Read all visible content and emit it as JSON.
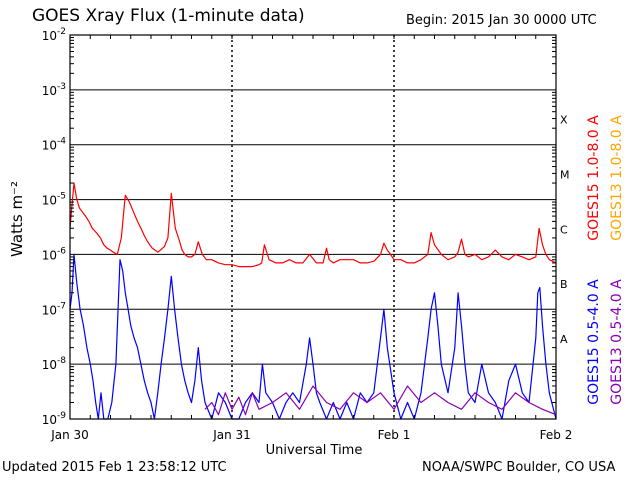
{
  "header": {
    "title": "GOES Xray Flux (1-minute data)",
    "begin": "Begin:  2015 Jan 30 0000 UTC"
  },
  "footer": {
    "updated": "Updated 2015 Feb  1 23:58:12 UTC",
    "credit": "NOAA/SWPC Boulder, CO USA"
  },
  "colors": {
    "goes15_long": "#ff0000",
    "goes13_long": "#ffa500",
    "goes15_short": "#0000ff",
    "goes13_short": "#8b00b0",
    "grid": "#000000"
  },
  "chart_data": {
    "type": "line",
    "xlabel": "Universal Time",
    "ylabel": "Watts m⁻²",
    "yscale": "log",
    "ylim": [
      1e-09,
      0.01
    ],
    "xlim": [
      0,
      72
    ],
    "x_unit": "hours since 2015 Jan 30 0000 UTC",
    "x_tick_labels": [
      {
        "x": 0,
        "label": "Jan 30"
      },
      {
        "x": 24,
        "label": "Jan 31"
      },
      {
        "x": 48,
        "label": "Feb 1"
      },
      {
        "x": 72,
        "label": "Feb 2"
      }
    ],
    "y_tick_labels": [
      {
        "value": 1e-09,
        "mant": "10",
        "exp": "-9"
      },
      {
        "value": 1e-08,
        "mant": "10",
        "exp": "-8"
      },
      {
        "value": 1e-07,
        "mant": "10",
        "exp": "-7"
      },
      {
        "value": 1e-06,
        "mant": "10",
        "exp": "-6"
      },
      {
        "value": 1e-05,
        "mant": "10",
        "exp": "-5"
      },
      {
        "value": 0.0001,
        "mant": "10",
        "exp": "-4"
      },
      {
        "value": 0.001,
        "mant": "10",
        "exp": "-3"
      },
      {
        "value": 0.01,
        "mant": "10",
        "exp": "-2"
      }
    ],
    "flare_classes": [
      {
        "label": "A",
        "value": 3e-08
      },
      {
        "label": "B",
        "value": 3e-07
      },
      {
        "label": "C",
        "value": 3e-06
      },
      {
        "label": "M",
        "value": 3e-05
      },
      {
        "label": "X",
        "value": 0.0003
      }
    ],
    "grid": true,
    "legend_position": "right",
    "series": [
      {
        "name": "GOES15 1.0-8.0 A",
        "color_key": "goes15_long",
        "x": [
          0,
          0.3,
          0.6,
          1.0,
          1.4,
          1.8,
          2.3,
          2.8,
          3.3,
          3.9,
          4.5,
          5.0,
          5.5,
          6.0,
          6.4,
          7.0,
          7.6,
          8.2,
          8.8,
          9.4,
          10.0,
          10.5,
          11.0,
          11.4,
          11.8,
          12.2,
          12.6,
          13.0,
          13.4,
          14.0,
          14.5,
          15.0,
          15.6,
          16.2,
          16.6,
          17.0,
          17.5,
          18.0,
          18.5,
          19.0,
          19.6,
          20.2,
          21.0,
          22.0,
          23.0,
          24.0,
          25.0,
          26.0,
          27.0,
          28.0,
          28.4,
          28.8,
          29.5,
          30.5,
          31.5,
          32.5,
          33.5,
          34.5,
          35.5,
          36.5,
          37.5,
          38.0,
          38.4,
          39.0,
          40.0,
          41.0,
          42.0,
          43.0,
          44.0,
          45.0,
          46.0,
          46.5,
          47.0,
          47.5,
          48.0,
          49.0,
          50.0,
          51.0,
          52.0,
          53.0,
          53.5,
          54.0,
          55.0,
          56.0,
          57.0,
          57.5,
          58.0,
          58.5,
          59.0,
          60.0,
          61.0,
          62.0,
          63.0,
          64.0,
          65.0,
          66.0,
          67.0,
          68.0,
          69.0,
          69.5,
          70.0,
          70.5,
          71.0,
          72.0
        ],
        "y": [
          3e-06,
          8e-06,
          2e-05,
          1e-05,
          7e-06,
          6e-06,
          5e-06,
          4e-06,
          3e-06,
          2.5e-06,
          2e-06,
          1.5e-06,
          1.3e-06,
          1.2e-06,
          1.1e-06,
          1e-06,
          2e-06,
          1.2e-05,
          9e-06,
          6e-06,
          4e-06,
          3e-06,
          2.2e-06,
          1.8e-06,
          1.5e-06,
          1.3e-06,
          1.2e-06,
          1.1e-06,
          1.2e-06,
          1.4e-06,
          2e-06,
          1.3e-05,
          3e-06,
          1.8e-06,
          1.2e-06,
          1e-06,
          9e-07,
          9e-07,
          1e-06,
          1.7e-06,
          1e-06,
          8e-07,
          8e-07,
          7e-07,
          6.5e-07,
          6.5e-07,
          6e-07,
          6e-07,
          6e-07,
          6.5e-07,
          7e-07,
          1.5e-06,
          8e-07,
          7e-07,
          7e-07,
          8e-07,
          7e-07,
          7e-07,
          1e-06,
          7e-07,
          7e-07,
          1.3e-06,
          8e-07,
          7e-07,
          8e-07,
          8e-07,
          8e-07,
          7e-07,
          7e-07,
          7.5e-07,
          1e-06,
          1.6e-06,
          1.2e-06,
          1e-06,
          8e-07,
          8e-07,
          7e-07,
          7e-07,
          8e-07,
          1e-06,
          2.5e-06,
          1.5e-06,
          1e-06,
          8e-07,
          9e-07,
          1.1e-06,
          1.9e-06,
          1e-06,
          9e-07,
          1e-06,
          8e-07,
          9e-07,
          1.2e-06,
          9e-07,
          8e-07,
          1e-06,
          9e-07,
          8e-07,
          9e-07,
          3e-06,
          1.5e-06,
          1e-06,
          8e-07,
          7e-07
        ]
      },
      {
        "name": "GOES13 1.0-8.0 A",
        "color_key": "goes13_long",
        "x": [],
        "y": []
      },
      {
        "name": "GOES15 0.5-4.0 A",
        "color_key": "goes15_short",
        "x": [
          0,
          0.3,
          0.6,
          1.0,
          1.5,
          2.0,
          2.5,
          3.0,
          3.4,
          3.8,
          4.2,
          4.6,
          5.0,
          5.6,
          6.2,
          6.8,
          7.4,
          7.8,
          8.2,
          8.6,
          9.0,
          9.5,
          10.0,
          10.5,
          11.0,
          11.5,
          12.0,
          12.5,
          13.0,
          13.5,
          14.0,
          14.5,
          15.0,
          15.5,
          16.0,
          16.5,
          17.0,
          17.5,
          18.0,
          18.5,
          19.0,
          19.5,
          20.0,
          21.0,
          22.0,
          23.0,
          24.0,
          25.0,
          26.0,
          27.0,
          28.0,
          28.5,
          29.0,
          30.0,
          31.0,
          32.0,
          33.0,
          34.0,
          35.0,
          35.5,
          36.0,
          36.5,
          37.0,
          38.0,
          39.0,
          40.0,
          41.0,
          42.0,
          43.0,
          44.0,
          45.0,
          46.0,
          46.5,
          47.0,
          48.0,
          49.0,
          50.0,
          51.0,
          52.0,
          53.0,
          53.5,
          54.0,
          54.5,
          55.0,
          56.0,
          57.0,
          57.5,
          58.0,
          58.5,
          59.0,
          60.0,
          61.0,
          62.0,
          63.0,
          64.0,
          65.0,
          66.0,
          67.0,
          68.0,
          69.0,
          69.3,
          69.6,
          70.0,
          70.5,
          71.0,
          72.0
        ],
        "y": [
          1e-07,
          2e-07,
          1e-06,
          3e-07,
          1e-07,
          5e-08,
          2e-08,
          1e-08,
          5e-09,
          2e-09,
          1e-09,
          3e-09,
          1e-09,
          1e-09,
          2e-09,
          1e-08,
          8e-07,
          5e-07,
          2e-07,
          1e-07,
          5e-08,
          3e-08,
          2e-08,
          1e-08,
          5e-09,
          3e-09,
          2e-09,
          1e-09,
          3e-09,
          1e-08,
          3e-08,
          1e-07,
          4e-07,
          1e-07,
          3e-08,
          1e-08,
          5e-09,
          3e-09,
          2e-09,
          5e-09,
          2e-08,
          5e-09,
          2e-09,
          1e-09,
          3e-09,
          2e-09,
          1e-09,
          1e-09,
          2e-09,
          3e-09,
          2e-09,
          1e-08,
          3e-09,
          2e-09,
          1e-09,
          2e-09,
          3e-09,
          2e-09,
          1e-08,
          3e-08,
          1e-08,
          3e-09,
          2e-09,
          1e-09,
          2e-09,
          1e-09,
          2e-09,
          1e-09,
          3e-09,
          2e-09,
          3e-09,
          3e-08,
          1e-07,
          2e-08,
          3e-09,
          1e-09,
          2e-09,
          1e-09,
          3e-09,
          3e-08,
          1e-07,
          2e-07,
          5e-08,
          1e-08,
          3e-09,
          2e-08,
          2e-07,
          5e-08,
          1e-08,
          3e-09,
          2e-09,
          1e-08,
          3e-09,
          2e-09,
          1e-09,
          5e-09,
          1e-08,
          3e-09,
          2e-09,
          3e-08,
          2e-07,
          2.5e-07,
          5e-08,
          1e-08,
          3e-09,
          1e-09
        ]
      },
      {
        "name": "GOES13 0.5-4.0 A",
        "color_key": "goes13_short",
        "x": [
          20.0,
          21.0,
          22.0,
          23.0,
          24.0,
          25.0,
          26.0,
          27.0,
          28.0,
          30.0,
          32.0,
          34.0,
          36.0,
          38.0,
          40.0,
          42.0,
          44.0,
          46.0,
          48.0,
          50.0,
          52.0,
          54.0,
          56.0,
          58.0,
          60.0,
          62.0,
          64.0,
          66.0,
          68.0,
          70.0,
          72.0
        ],
        "y": [
          1.5e-09,
          2e-09,
          1.2e-09,
          3e-09,
          1.5e-09,
          2.5e-09,
          1.2e-09,
          3e-09,
          1.5e-09,
          2e-09,
          3e-09,
          1.5e-09,
          4e-09,
          2e-09,
          1.5e-09,
          3e-09,
          2e-09,
          3e-09,
          1.5e-09,
          4e-09,
          2e-09,
          3e-09,
          2e-09,
          1.5e-09,
          3e-09,
          2e-09,
          1.5e-09,
          3e-09,
          2e-09,
          1.5e-09,
          1.2e-09
        ]
      }
    ]
  }
}
